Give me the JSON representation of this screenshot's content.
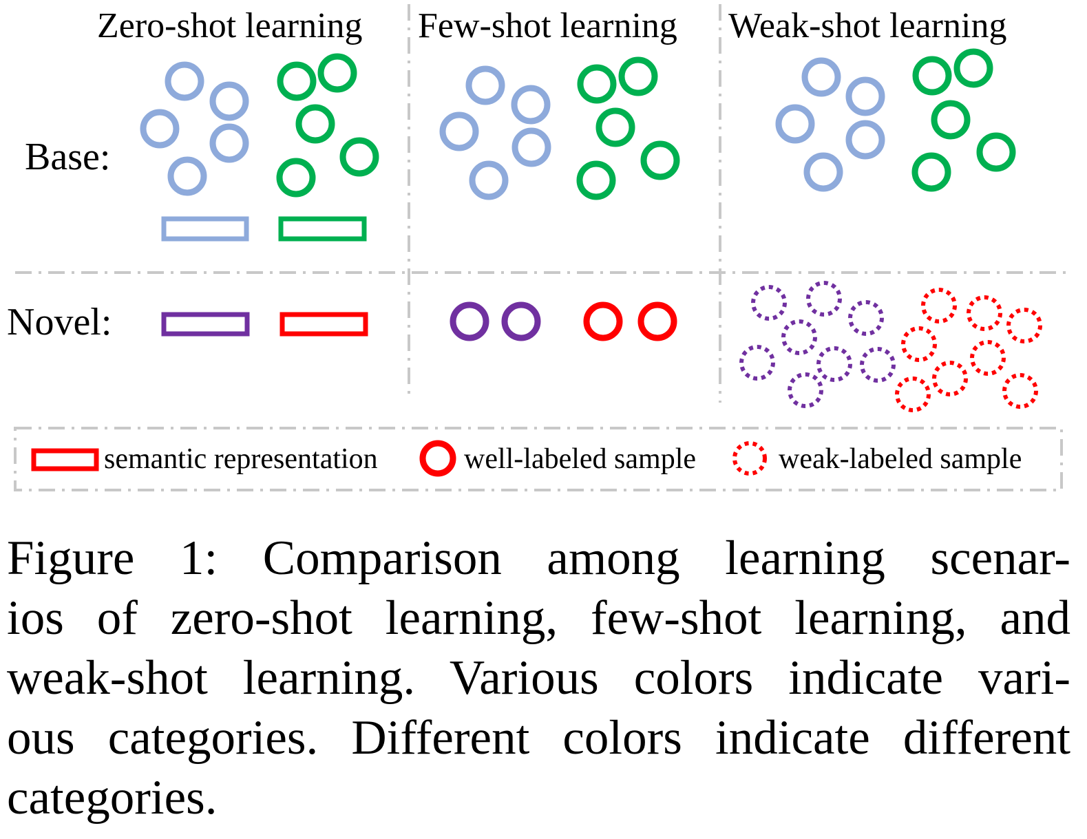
{
  "columns": {
    "zero": "Zero-shot learning",
    "few": "Few-shot learning",
    "weak": "Weak-shot learning"
  },
  "rows": {
    "base": "Base:",
    "novel": "Novel:"
  },
  "legend": {
    "semantic": "semantic representation",
    "well": "well-labeled sample",
    "weak": "weak-labeled sample"
  },
  "caption": {
    "line1": "Figure 1:  Comparison among learning scenar-",
    "line2": "ios of zero-shot learning, few-shot learning, and",
    "line3": "weak-shot learning.  Various colors indicate vari-",
    "line4": "ous categories. Different colors indicate different",
    "line5": "categories."
  },
  "colors": {
    "blue": "#8eaadb",
    "green": "#00b050",
    "purple": "#7030a0",
    "red": "#ff0000",
    "divider": "#c8c8c8"
  }
}
